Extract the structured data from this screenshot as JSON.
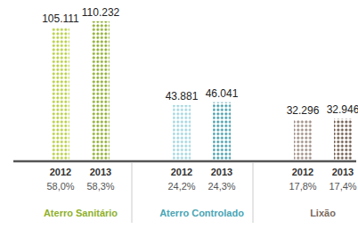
{
  "chart_data": {
    "type": "bar",
    "categories": [
      "2012",
      "2013"
    ],
    "ylim": [
      0,
      120000
    ],
    "tick_labels": false,
    "data_labels": true,
    "series": [
      {
        "name": "Aterro Sanitário",
        "color": "#8fb02a",
        "colors": [
          "#b5cc3a",
          "#8aaa28"
        ],
        "values": [
          105111,
          110232
        ],
        "value_labels": [
          "105.111",
          "110.232"
        ],
        "share_labels": [
          "58,0%",
          "58,3%"
        ]
      },
      {
        "name": "Aterro Controlado",
        "color": "#4aa5b5",
        "colors": [
          "#9fd4de",
          "#3f9aa8"
        ],
        "values": [
          43881,
          46041
        ],
        "value_labels": [
          "43.881",
          "46.041"
        ],
        "share_labels": [
          "24,2%",
          "24,3%"
        ]
      },
      {
        "name": "Lixão",
        "color": "#7a6a5e",
        "colors": [
          "#9a8a80",
          "#6a5548"
        ],
        "values": [
          32296,
          32946
        ],
        "value_labels": [
          "32.296",
          "32.946"
        ],
        "share_labels": [
          "17,8%",
          "17,4%"
        ]
      }
    ]
  }
}
